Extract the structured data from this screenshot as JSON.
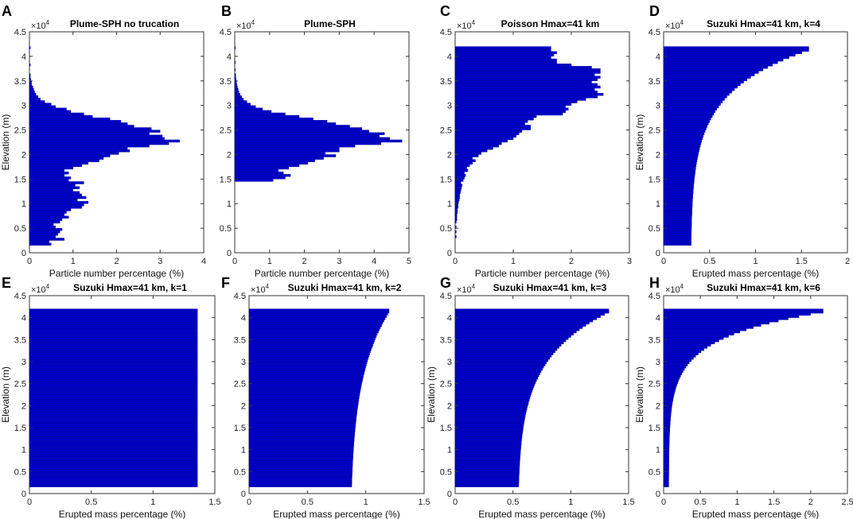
{
  "figure": {
    "bar_color": "#0000c8",
    "bar_edge_color": "#000080",
    "frame_color": "#333333"
  },
  "chart_data": [
    {
      "id": "A",
      "panel_label": "A",
      "type": "bar",
      "orientation": "horizontal",
      "title": "Plume-SPH no trucation",
      "xlabel": "Particle number percentage (%)",
      "ylabel": "Elevation (m)",
      "xlim": [
        0,
        4
      ],
      "ylim": [
        0,
        45000
      ],
      "xticks": [
        "0",
        "1",
        "2",
        "3",
        "4"
      ],
      "yticks": [
        "0",
        "0.5",
        "1",
        "1.5",
        "2",
        "2.5",
        "3",
        "3.5",
        "4",
        "4.5"
      ],
      "y_multiplier": "×10",
      "y_multiplier_exp": "4",
      "bin_width": 500,
      "bins": [
        [
          1500,
          0.5
        ],
        [
          2000,
          0.45
        ],
        [
          2500,
          0.8
        ],
        [
          3000,
          0.6
        ],
        [
          3500,
          0.65
        ],
        [
          4000,
          0.7
        ],
        [
          4500,
          0.75
        ],
        [
          5000,
          0.6
        ],
        [
          5500,
          0.55
        ],
        [
          6000,
          0.7
        ],
        [
          6500,
          0.75
        ],
        [
          7000,
          0.9
        ],
        [
          7500,
          0.8
        ],
        [
          8000,
          0.85
        ],
        [
          8500,
          0.95
        ],
        [
          9000,
          1.2
        ],
        [
          9500,
          1.25
        ],
        [
          10000,
          1.35
        ],
        [
          10500,
          1.1
        ],
        [
          11000,
          1.3
        ],
        [
          11500,
          1.2
        ],
        [
          12000,
          1.15
        ],
        [
          12500,
          1.0
        ],
        [
          13000,
          1.15
        ],
        [
          13500,
          1.05
        ],
        [
          14000,
          1.25
        ],
        [
          14500,
          0.9
        ],
        [
          15000,
          0.95
        ],
        [
          15500,
          0.8
        ],
        [
          16000,
          0.9
        ],
        [
          16500,
          0.8
        ],
        [
          17000,
          1.0
        ],
        [
          17500,
          1.2
        ],
        [
          18000,
          1.35
        ],
        [
          18500,
          1.6
        ],
        [
          19000,
          1.7
        ],
        [
          19500,
          1.85
        ],
        [
          20000,
          2.05
        ],
        [
          20500,
          2.3
        ],
        [
          21000,
          2.25
        ],
        [
          21500,
          2.75
        ],
        [
          22000,
          3.2
        ],
        [
          22500,
          3.45
        ],
        [
          23000,
          3.1
        ],
        [
          23500,
          3.05
        ],
        [
          24000,
          2.75
        ],
        [
          24500,
          3.0
        ],
        [
          25000,
          2.8
        ],
        [
          25500,
          2.4
        ],
        [
          26000,
          2.25
        ],
        [
          26500,
          2.1
        ],
        [
          27000,
          1.85
        ],
        [
          27500,
          1.45
        ],
        [
          28000,
          1.25
        ],
        [
          28500,
          0.95
        ],
        [
          29000,
          0.85
        ],
        [
          29500,
          0.6
        ],
        [
          30000,
          0.5
        ],
        [
          30500,
          0.35
        ],
        [
          31000,
          0.25
        ],
        [
          31500,
          0.2
        ],
        [
          32000,
          0.15
        ],
        [
          32500,
          0.12
        ],
        [
          33000,
          0.1
        ],
        [
          33500,
          0.08
        ],
        [
          34000,
          0.05
        ],
        [
          34500,
          0.05
        ],
        [
          35000,
          0.03
        ],
        [
          35500,
          0.02
        ],
        [
          36000,
          0.02
        ],
        [
          38000,
          0.02
        ],
        [
          41500,
          0.02
        ]
      ]
    },
    {
      "id": "B",
      "panel_label": "B",
      "type": "bar",
      "orientation": "horizontal",
      "title": "Plume-SPH",
      "xlabel": "Particle number percentage (%)",
      "ylabel": "",
      "xlim": [
        0,
        5
      ],
      "ylim": [
        0,
        45000
      ],
      "xticks": [
        "0",
        "1",
        "2",
        "3",
        "4",
        "5"
      ],
      "yticks": [
        "0",
        "0.5",
        "1",
        "1.5",
        "2",
        "2.5",
        "3",
        "3.5",
        "4",
        "4.5"
      ],
      "y_multiplier": "×10",
      "y_multiplier_exp": "4",
      "bin_width": 500,
      "bins": [
        [
          14500,
          1.1
        ],
        [
          15000,
          1.45
        ],
        [
          15500,
          1.6
        ],
        [
          16000,
          1.4
        ],
        [
          16500,
          1.25
        ],
        [
          17000,
          1.55
        ],
        [
          17500,
          1.85
        ],
        [
          18000,
          2.1
        ],
        [
          18500,
          2.3
        ],
        [
          19000,
          2.55
        ],
        [
          19500,
          2.9
        ],
        [
          20000,
          2.6
        ],
        [
          20500,
          3.0
        ],
        [
          21000,
          3.0
        ],
        [
          21500,
          3.45
        ],
        [
          22000,
          4.2
        ],
        [
          22500,
          4.8
        ],
        [
          23000,
          4.45
        ],
        [
          23500,
          4.15
        ],
        [
          24000,
          4.3
        ],
        [
          24500,
          3.85
        ],
        [
          25000,
          3.65
        ],
        [
          25500,
          3.3
        ],
        [
          26000,
          2.9
        ],
        [
          26500,
          2.65
        ],
        [
          27000,
          2.25
        ],
        [
          27500,
          1.85
        ],
        [
          28000,
          1.45
        ],
        [
          28500,
          1.05
        ],
        [
          29000,
          0.8
        ],
        [
          29500,
          0.6
        ],
        [
          30000,
          0.45
        ],
        [
          30500,
          0.35
        ],
        [
          31000,
          0.25
        ],
        [
          31500,
          0.2
        ],
        [
          32000,
          0.15
        ],
        [
          32500,
          0.12
        ],
        [
          33000,
          0.1
        ],
        [
          33500,
          0.08
        ],
        [
          34000,
          0.06
        ],
        [
          34500,
          0.05
        ],
        [
          35000,
          0.04
        ],
        [
          35500,
          0.03
        ],
        [
          36000,
          0.03
        ],
        [
          37000,
          0.02
        ],
        [
          38500,
          0.02
        ],
        [
          41500,
          0.02
        ]
      ]
    },
    {
      "id": "C",
      "panel_label": "C",
      "type": "bar",
      "orientation": "horizontal",
      "title": "Poisson Hmax=41 km",
      "xlabel": "Particle number percentage (%)",
      "ylabel": "",
      "xlim": [
        0,
        3
      ],
      "ylim": [
        0,
        45000
      ],
      "xticks": [
        "0",
        "1",
        "2",
        "3"
      ],
      "yticks": [
        "0",
        "0.5",
        "1",
        "1.5",
        "2",
        "2.5",
        "3",
        "3.5",
        "4",
        "4.5"
      ],
      "y_multiplier": "×10",
      "y_multiplier_exp": "4",
      "bin_width": 500,
      "bins": [
        [
          3000,
          0.02
        ],
        [
          4000,
          0.02
        ],
        [
          5000,
          0.02
        ],
        [
          6000,
          0.02
        ],
        [
          6500,
          0.03
        ],
        [
          7000,
          0.03
        ],
        [
          7500,
          0.03
        ],
        [
          8000,
          0.04
        ],
        [
          8500,
          0.04
        ],
        [
          9000,
          0.05
        ],
        [
          9500,
          0.05
        ],
        [
          10000,
          0.06
        ],
        [
          10500,
          0.07
        ],
        [
          11000,
          0.08
        ],
        [
          11500,
          0.08
        ],
        [
          12000,
          0.09
        ],
        [
          12500,
          0.1
        ],
        [
          13000,
          0.11
        ],
        [
          13500,
          0.12
        ],
        [
          14000,
          0.1
        ],
        [
          14500,
          0.14
        ],
        [
          15000,
          0.16
        ],
        [
          15500,
          0.18
        ],
        [
          16000,
          0.16
        ],
        [
          16500,
          0.22
        ],
        [
          17000,
          0.2
        ],
        [
          17500,
          0.25
        ],
        [
          18000,
          0.3
        ],
        [
          18500,
          0.35
        ],
        [
          19000,
          0.3
        ],
        [
          19500,
          0.4
        ],
        [
          20000,
          0.45
        ],
        [
          20500,
          0.55
        ],
        [
          21000,
          0.65
        ],
        [
          21500,
          0.75
        ],
        [
          22000,
          0.8
        ],
        [
          22500,
          0.9
        ],
        [
          23000,
          1.0
        ],
        [
          23500,
          1.05
        ],
        [
          24000,
          1.1
        ],
        [
          24500,
          1.15
        ],
        [
          25000,
          1.3
        ],
        [
          25500,
          1.3
        ],
        [
          26000,
          1.2
        ],
        [
          26500,
          1.25
        ],
        [
          27000,
          1.35
        ],
        [
          27500,
          1.4
        ],
        [
          28000,
          1.85
        ],
        [
          28500,
          1.9
        ],
        [
          29000,
          1.95
        ],
        [
          29500,
          1.9
        ],
        [
          30000,
          2.0
        ],
        [
          30500,
          2.1
        ],
        [
          31000,
          2.25
        ],
        [
          31500,
          2.45
        ],
        [
          32000,
          2.55
        ],
        [
          32500,
          2.45
        ],
        [
          33000,
          2.4
        ],
        [
          33500,
          2.5
        ],
        [
          34000,
          2.45
        ],
        [
          34500,
          2.35
        ],
        [
          35000,
          2.45
        ],
        [
          35500,
          2.5
        ],
        [
          36000,
          2.4
        ],
        [
          36500,
          2.5
        ],
        [
          37000,
          2.5
        ],
        [
          37500,
          2.35
        ],
        [
          38000,
          2.0
        ],
        [
          38500,
          1.75
        ],
        [
          39000,
          1.75
        ],
        [
          39500,
          1.65
        ],
        [
          40000,
          1.7
        ],
        [
          40500,
          1.75
        ],
        [
          41000,
          1.65
        ],
        [
          41500,
          1.65
        ]
      ]
    },
    {
      "id": "D",
      "panel_label": "D",
      "type": "bar",
      "orientation": "horizontal",
      "title": "Suzuki Hmax=41 km, k=4",
      "xlabel": "Erupted mass percentage (%)",
      "ylabel": "Elevation (m)",
      "xlim": [
        0,
        2
      ],
      "ylim": [
        0,
        45000
      ],
      "xticks": [
        "0",
        "0.5",
        "1",
        "1.5",
        "2"
      ],
      "yticks": [
        "0",
        "0.5",
        "1",
        "1.5",
        "2",
        "2.5",
        "3",
        "3.5",
        "4",
        "4.5"
      ],
      "y_multiplier": "×10",
      "y_multiplier_exp": "4",
      "profile": {
        "k": 4,
        "z_min": 1500,
        "z_max": 42000,
        "bin_width": 500,
        "x_at_zmin": 0.3,
        "x_peak": 1.58
      }
    },
    {
      "id": "E",
      "panel_label": "E",
      "type": "bar",
      "orientation": "horizontal",
      "title": "Suzuki Hmax=41 km, k=1",
      "xlabel": "Erupted mass percentage (%)",
      "ylabel": "Elevation (m)",
      "xlim": [
        0,
        1.5
      ],
      "ylim": [
        0,
        45000
      ],
      "xticks": [
        "0",
        "0.5",
        "1",
        "1.5"
      ],
      "yticks": [
        "0",
        "0.5",
        "1",
        "1.5",
        "2",
        "2.5",
        "3",
        "3.5",
        "4",
        "4.5"
      ],
      "y_multiplier": "×10",
      "y_multiplier_exp": "4",
      "profile": {
        "k": 1,
        "z_min": 1500,
        "z_max": 42000,
        "bin_width": 500,
        "x_at_zmin": 1.36,
        "x_peak": 1.36
      }
    },
    {
      "id": "F",
      "panel_label": "F",
      "type": "bar",
      "orientation": "horizontal",
      "title": "Suzuki Hmax=41 km, k=2",
      "xlabel": "Erupted mass percentage (%)",
      "ylabel": "",
      "xlim": [
        0,
        1.5
      ],
      "ylim": [
        0,
        45000
      ],
      "xticks": [
        "0",
        "0.5",
        "1",
        "1.5"
      ],
      "yticks": [
        "0",
        "0.5",
        "1",
        "1.5",
        "2",
        "2.5",
        "3",
        "3.5",
        "4",
        "4.5"
      ],
      "y_multiplier": "×10",
      "y_multiplier_exp": "4",
      "profile": {
        "k": 2,
        "z_min": 1500,
        "z_max": 42000,
        "bin_width": 500,
        "x_at_zmin": 0.88,
        "x_peak": 1.2
      }
    },
    {
      "id": "G",
      "panel_label": "G",
      "type": "bar",
      "orientation": "horizontal",
      "title": "Suzuki Hmax=41 km, k=3",
      "xlabel": "Erupted mass percentage (%)",
      "ylabel": "Elevation (m)",
      "xlim": [
        0,
        1.5
      ],
      "ylim": [
        0,
        45000
      ],
      "xticks": [
        "0",
        "0.5",
        "1",
        "1.5"
      ],
      "yticks": [
        "0",
        "0.5",
        "1",
        "1.5",
        "2",
        "2.5",
        "3",
        "3.5",
        "4",
        "4.5"
      ],
      "y_multiplier": "×10",
      "y_multiplier_exp": "4",
      "profile": {
        "k": 3,
        "z_min": 1500,
        "z_max": 42000,
        "bin_width": 500,
        "x_at_zmin": 0.55,
        "x_peak": 1.33
      }
    },
    {
      "id": "H",
      "panel_label": "H",
      "type": "bar",
      "orientation": "horizontal",
      "title": "Suzuki Hmax=41 km, k=6",
      "xlabel": "Erupted mass percentage (%)",
      "ylabel": "Elevation (m)",
      "xlim": [
        0,
        2.5
      ],
      "ylim": [
        0,
        45000
      ],
      "xticks": [
        "0",
        "0.5",
        "1",
        "1.5",
        "2",
        "2.5"
      ],
      "yticks": [
        "0",
        "0.5",
        "1",
        "1.5",
        "2",
        "2.5",
        "3",
        "3.5",
        "4",
        "4.5"
      ],
      "y_multiplier": "×10",
      "y_multiplier_exp": "4",
      "profile": {
        "k": 6,
        "z_min": 1500,
        "z_max": 42000,
        "bin_width": 500,
        "x_at_zmin": 0.07,
        "x_peak": 2.17
      }
    }
  ]
}
